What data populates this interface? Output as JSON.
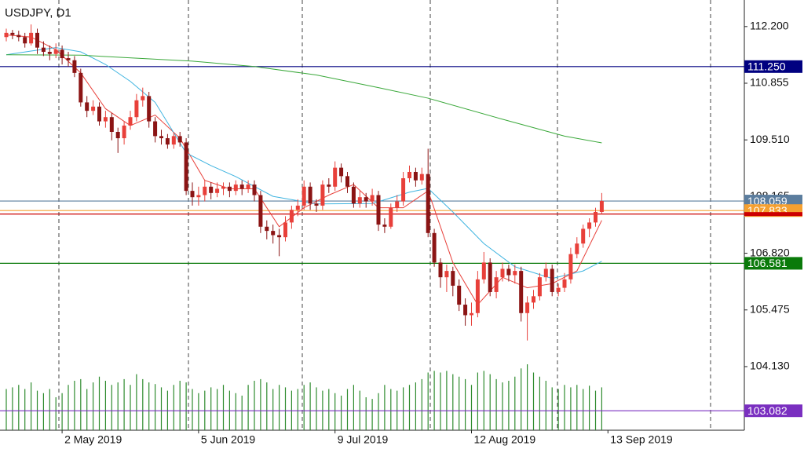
{
  "chart_data": {
    "type": "candlestick",
    "title": "USDJPY, D1",
    "ylim": [
      102.62,
      112.83
    ],
    "yticks": [
      {
        "value": 112.2,
        "label": "112.200"
      },
      {
        "value": 110.855,
        "label": "110.855"
      },
      {
        "value": 109.51,
        "label": "109.510"
      },
      {
        "value": 108.165,
        "label": "108.165"
      },
      {
        "value": 106.82,
        "label": "106.820"
      },
      {
        "value": 105.475,
        "label": "105.475"
      },
      {
        "value": 104.13,
        "label": "104.130"
      }
    ],
    "categories": [
      null,
      null,
      null,
      null,
      null,
      null,
      null,
      null,
      null,
      "2 May 2019",
      null,
      null,
      null,
      null,
      null,
      null,
      null,
      null,
      null,
      null,
      null,
      null,
      null,
      null,
      null,
      null,
      null,
      null,
      null,
      null,
      null,
      "5 Jun 2019",
      null,
      null,
      null,
      null,
      null,
      null,
      null,
      null,
      null,
      null,
      null,
      null,
      null,
      null,
      null,
      null,
      null,
      null,
      null,
      null,
      null,
      "9 Jul 2019",
      null,
      null,
      null,
      null,
      null,
      null,
      null,
      null,
      null,
      null,
      null,
      null,
      null,
      null,
      null,
      null,
      null,
      null,
      null,
      null,
      null,
      "12 Aug 2019",
      null,
      null,
      null,
      null,
      null,
      null,
      null,
      null,
      null,
      null,
      null,
      null,
      null,
      null,
      null,
      null,
      null,
      null,
      null,
      null,
      null,
      "13 Sep 2019"
    ],
    "ohlc": [
      [
        111.95,
        112.15,
        111.85,
        112.05
      ],
      [
        112.05,
        112.12,
        111.9,
        112.0
      ],
      [
        112.0,
        112.1,
        111.85,
        111.95
      ],
      [
        111.95,
        112.05,
        111.7,
        111.8
      ],
      [
        111.8,
        112.25,
        111.75,
        112.05
      ],
      [
        112.05,
        112.15,
        111.55,
        111.7
      ],
      [
        111.7,
        111.85,
        111.5,
        111.6
      ],
      [
        111.6,
        111.75,
        111.4,
        111.55
      ],
      [
        111.55,
        111.8,
        111.45,
        111.65
      ],
      [
        111.65,
        111.75,
        111.3,
        111.45
      ],
      [
        111.45,
        111.6,
        111.25,
        111.4
      ],
      [
        111.4,
        111.5,
        111.0,
        111.1
      ],
      [
        111.1,
        111.2,
        110.3,
        110.4
      ],
      [
        110.4,
        110.55,
        110.05,
        110.2
      ],
      [
        110.2,
        110.45,
        110.1,
        110.3
      ],
      [
        110.3,
        110.4,
        109.85,
        109.95
      ],
      [
        109.95,
        110.2,
        109.8,
        110.05
      ],
      [
        110.05,
        110.15,
        109.5,
        109.7
      ],
      [
        109.7,
        109.8,
        109.2,
        109.55
      ],
      [
        109.55,
        109.95,
        109.4,
        109.85
      ],
      [
        109.85,
        110.2,
        109.75,
        110.05
      ],
      [
        110.05,
        110.6,
        109.95,
        110.45
      ],
      [
        110.45,
        110.75,
        110.3,
        110.55
      ],
      [
        110.55,
        110.65,
        109.8,
        109.95
      ],
      [
        109.95,
        110.05,
        109.45,
        109.6
      ],
      [
        109.6,
        109.75,
        109.4,
        109.55
      ],
      [
        109.55,
        109.65,
        109.3,
        109.4
      ],
      [
        109.4,
        109.7,
        109.3,
        109.6
      ],
      [
        109.6,
        109.7,
        109.35,
        109.45
      ],
      [
        109.45,
        109.55,
        108.2,
        108.3
      ],
      [
        108.3,
        108.5,
        107.95,
        108.15
      ],
      [
        108.15,
        108.4,
        107.95,
        108.2
      ],
      [
        108.2,
        108.55,
        108.05,
        108.4
      ],
      [
        108.4,
        108.5,
        108.1,
        108.25
      ],
      [
        108.25,
        108.5,
        108.15,
        108.35
      ],
      [
        108.35,
        108.5,
        108.2,
        108.4
      ],
      [
        108.4,
        108.5,
        108.15,
        108.3
      ],
      [
        108.3,
        108.55,
        108.2,
        108.45
      ],
      [
        108.45,
        108.55,
        108.2,
        108.35
      ],
      [
        108.35,
        108.55,
        108.25,
        108.45
      ],
      [
        108.45,
        108.55,
        108.05,
        108.2
      ],
      [
        108.2,
        108.3,
        107.3,
        107.45
      ],
      [
        107.45,
        107.6,
        107.15,
        107.35
      ],
      [
        107.35,
        107.5,
        107.05,
        107.25
      ],
      [
        107.25,
        107.4,
        106.75,
        107.2
      ],
      [
        107.2,
        107.7,
        107.1,
        107.55
      ],
      [
        107.55,
        107.95,
        107.4,
        107.85
      ],
      [
        107.85,
        108.1,
        107.7,
        107.95
      ],
      [
        107.95,
        108.55,
        107.85,
        108.4
      ],
      [
        108.4,
        108.5,
        107.85,
        108.0
      ],
      [
        108.0,
        108.1,
        107.8,
        107.95
      ],
      [
        107.95,
        108.55,
        107.85,
        108.45
      ],
      [
        108.45,
        108.6,
        108.25,
        108.4
      ],
      [
        108.4,
        109.0,
        108.3,
        108.85
      ],
      [
        108.85,
        108.95,
        108.5,
        108.65
      ],
      [
        108.65,
        108.75,
        108.25,
        108.4
      ],
      [
        108.4,
        108.5,
        107.9,
        108.0
      ],
      [
        108.0,
        108.3,
        107.9,
        108.15
      ],
      [
        108.15,
        108.25,
        107.9,
        108.05
      ],
      [
        108.05,
        108.35,
        107.95,
        108.2
      ],
      [
        108.2,
        108.3,
        107.35,
        107.5
      ],
      [
        107.5,
        107.65,
        107.3,
        107.45
      ],
      [
        107.45,
        108.0,
        107.4,
        107.9
      ],
      [
        107.9,
        108.2,
        107.8,
        108.05
      ],
      [
        108.05,
        108.75,
        107.95,
        108.6
      ],
      [
        108.6,
        108.9,
        108.5,
        108.75
      ],
      [
        108.75,
        108.85,
        108.4,
        108.55
      ],
      [
        108.55,
        108.85,
        108.45,
        108.7
      ],
      [
        108.7,
        109.3,
        107.2,
        107.3
      ],
      [
        107.3,
        107.4,
        106.5,
        106.6
      ],
      [
        106.6,
        106.7,
        106.0,
        106.25
      ],
      [
        106.25,
        106.55,
        105.9,
        106.4
      ],
      [
        106.4,
        106.5,
        105.8,
        106.05
      ],
      [
        106.05,
        106.2,
        105.45,
        105.6
      ],
      [
        105.6,
        105.75,
        105.1,
        105.35
      ],
      [
        105.35,
        105.65,
        105.1,
        105.4
      ],
      [
        105.4,
        106.4,
        105.3,
        106.2
      ],
      [
        106.2,
        106.85,
        106.1,
        106.6
      ],
      [
        106.6,
        106.7,
        105.8,
        105.9
      ],
      [
        105.9,
        106.4,
        105.75,
        106.25
      ],
      [
        106.25,
        106.6,
        106.15,
        106.45
      ],
      [
        106.45,
        106.55,
        106.15,
        106.3
      ],
      [
        106.3,
        106.55,
        106.1,
        106.4
      ],
      [
        106.4,
        106.5,
        105.2,
        105.4
      ],
      [
        105.4,
        105.8,
        104.75,
        105.65
      ],
      [
        105.65,
        105.95,
        105.5,
        105.8
      ],
      [
        105.8,
        106.35,
        105.7,
        106.25
      ],
      [
        106.25,
        106.6,
        106.15,
        106.45
      ],
      [
        106.45,
        106.55,
        105.8,
        105.9
      ],
      [
        105.9,
        106.1,
        105.8,
        106.0
      ],
      [
        106.0,
        106.35,
        105.9,
        106.2
      ],
      [
        106.2,
        106.95,
        106.1,
        106.8
      ],
      [
        106.8,
        107.2,
        106.7,
        107.05
      ],
      [
        107.05,
        107.5,
        106.95,
        107.4
      ],
      [
        107.4,
        107.65,
        107.2,
        107.55
      ],
      [
        107.55,
        107.9,
        107.45,
        107.8
      ],
      [
        107.8,
        108.25,
        107.75,
        108.06
      ],
      null
    ],
    "up_color": "#e8403a",
    "down_color": "#8b1414",
    "volume": [
      50,
      52,
      55,
      50,
      58,
      48,
      45,
      50,
      40,
      45,
      55,
      60,
      62,
      50,
      58,
      65,
      60,
      55,
      58,
      62,
      55,
      68,
      62,
      58,
      56,
      52,
      48,
      55,
      60,
      58,
      50,
      45,
      48,
      52,
      50,
      55,
      48,
      45,
      42,
      55,
      60,
      62,
      58,
      50,
      55,
      52,
      48,
      50,
      55,
      58,
      52,
      48,
      50,
      45,
      42,
      50,
      55,
      48,
      40,
      38,
      45,
      55,
      50,
      48,
      52,
      55,
      58,
      62,
      70,
      72,
      70,
      72,
      68,
      65,
      62,
      55,
      70,
      72,
      68,
      62,
      58,
      60,
      65,
      75,
      80,
      70,
      65,
      60,
      52,
      50,
      55,
      52,
      55,
      50,
      54,
      48,
      52,
      null
    ],
    "volume_color": "#2e8b2e",
    "lines": [
      {
        "color": "#e8403a",
        "x": [
          0,
          4,
          8,
          12,
          16,
          20,
          24,
          28,
          32,
          36,
          40,
          44,
          48,
          52,
          56,
          60,
          64,
          68,
          72,
          76,
          80,
          84,
          88,
          92,
          96
        ],
        "values": [
          112.0,
          111.95,
          111.65,
          111.1,
          110.25,
          109.85,
          110.1,
          109.55,
          108.55,
          108.35,
          108.35,
          107.45,
          107.9,
          108.2,
          108.45,
          107.9,
          107.9,
          108.3,
          106.6,
          105.6,
          106.25,
          106.0,
          106.1,
          106.4,
          107.6
        ]
      },
      {
        "color": "#3fb4e0",
        "x": [
          0,
          4,
          8,
          12,
          16,
          20,
          24,
          29,
          33,
          37,
          43,
          50,
          59,
          65,
          68,
          72,
          77,
          82,
          88,
          93,
          96
        ],
        "values": [
          111.53,
          111.62,
          111.7,
          111.6,
          111.3,
          110.9,
          110.4,
          109.2,
          108.9,
          108.64,
          108.17,
          107.99,
          108.0,
          108.27,
          108.36,
          107.8,
          107.05,
          106.5,
          106.22,
          106.4,
          106.63
        ]
      },
      {
        "color": "#3aa83a",
        "x": [
          0,
          12,
          30,
          40,
          50,
          60,
          68,
          80,
          90,
          96
        ],
        "values": [
          111.53,
          111.52,
          111.38,
          111.25,
          111.05,
          110.75,
          110.5,
          110.0,
          109.6,
          109.44
        ]
      }
    ],
    "levels": [
      {
        "value": 111.25,
        "label": "111.250",
        "color": "#000080"
      },
      {
        "value": 108.059,
        "label": "108.059",
        "color": "#5b7d9e"
      },
      {
        "value": 107.833,
        "label": "107.833",
        "color": "#f5a030"
      },
      {
        "value": 107.75,
        "color": "#cc0000"
      },
      {
        "value": 106.581,
        "label": "106.581",
        "color": "#0a7a0a"
      },
      {
        "value": 103.082,
        "label": "103.082",
        "color": "#7a2fc0"
      }
    ]
  }
}
